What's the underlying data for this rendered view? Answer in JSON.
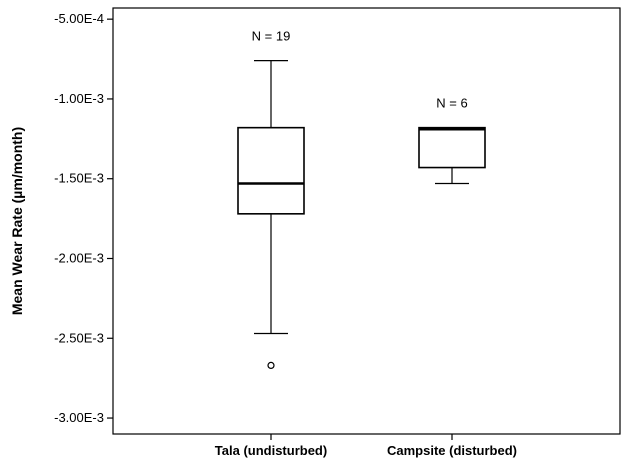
{
  "chart_data": {
    "type": "boxplot",
    "title": "",
    "xlabel": "",
    "ylabel": "Mean Wear Rate (µm/month)",
    "ylim": [
      -0.0031,
      -0.00043
    ],
    "y_ticks": [
      {
        "value": -0.0005,
        "label": "-5.00E-4"
      },
      {
        "value": -0.001,
        "label": "-1.00E-3"
      },
      {
        "value": -0.0015,
        "label": "-1.50E-3"
      },
      {
        "value": -0.002,
        "label": "-2.00E-3"
      },
      {
        "value": -0.0025,
        "label": "-2.50E-3"
      },
      {
        "value": -0.003,
        "label": "-3.00E-3"
      }
    ],
    "grid": false,
    "categories": [
      "Tala (undisturbed)",
      "Campsite (disturbed)"
    ],
    "boxes": [
      {
        "category": "Tala (undisturbed)",
        "n_label": "N = 19",
        "whisker_high": -0.00076,
        "q3": -0.00118,
        "median": -0.00153,
        "q1": -0.00172,
        "whisker_low": -0.00247,
        "outliers": [
          -0.00267
        ]
      },
      {
        "category": "Campsite (disturbed)",
        "n_label": "N = 6",
        "whisker_high": -0.00118,
        "q3": -0.00118,
        "median": -0.00119,
        "q1": -0.00143,
        "whisker_low": -0.00153,
        "outliers": []
      }
    ]
  }
}
